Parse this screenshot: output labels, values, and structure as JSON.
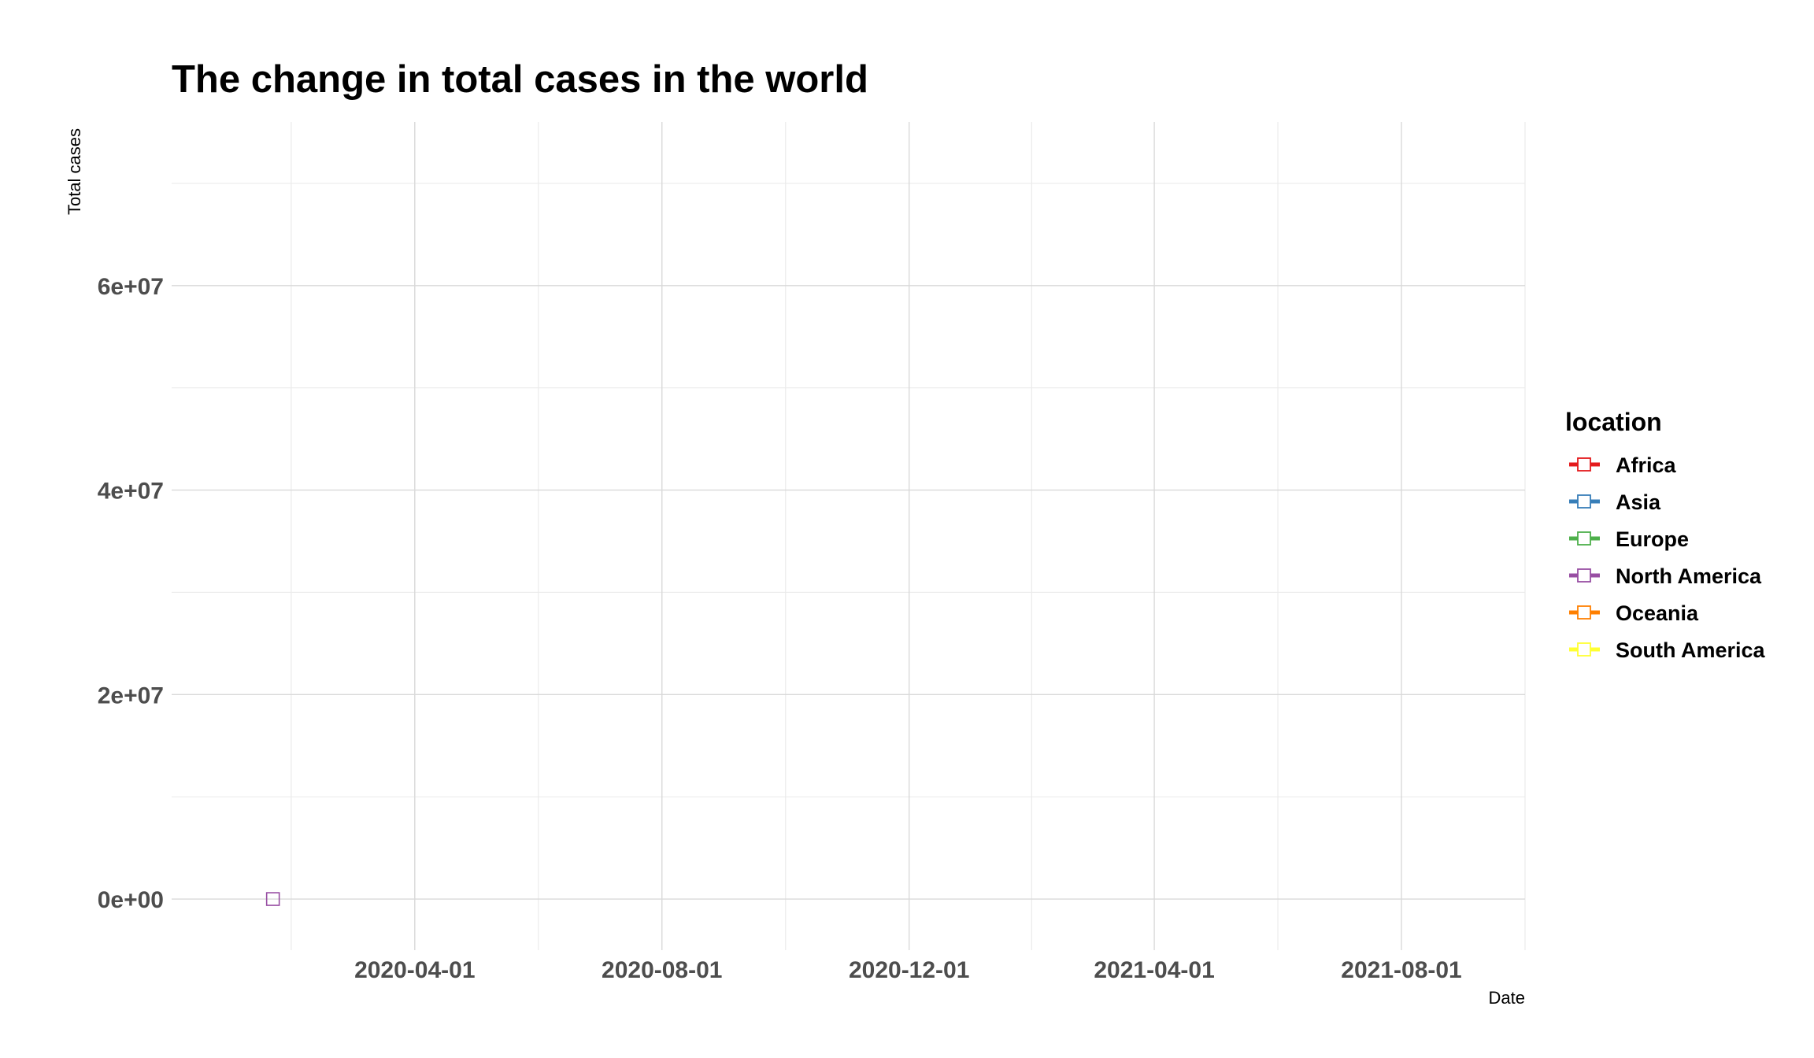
{
  "chart_data": {
    "type": "line",
    "title": "The change in total cases in the world",
    "xlabel": "Date",
    "ylabel": "Total cases",
    "x_axis": {
      "type": "date",
      "range": [
        "2019-12-03",
        "2021-10-01"
      ],
      "tick_labels": [
        "2020-04-01",
        "2020-08-01",
        "2020-12-01",
        "2021-04-01",
        "2021-08-01"
      ]
    },
    "y_axis": {
      "range": [
        -5000000,
        76000000
      ],
      "ticks": [
        0,
        20000000,
        40000000,
        60000000
      ],
      "tick_labels": [
        "0e+00",
        "2e+07",
        "4e+07",
        "6e+07"
      ]
    },
    "grid": true,
    "legend": {
      "title": "location",
      "position": "right"
    },
    "series": [
      {
        "name": "Africa",
        "color": "#e41a1c",
        "points": []
      },
      {
        "name": "Asia",
        "color": "#377eb8",
        "points": []
      },
      {
        "name": "Europe",
        "color": "#4daf4a",
        "points": []
      },
      {
        "name": "North America",
        "color": "#984ea3",
        "points": [
          {
            "x": "2020-01-22",
            "y": 1
          }
        ]
      },
      {
        "name": "Oceania",
        "color": "#ff7f00",
        "points": []
      },
      {
        "name": "South America",
        "color": "#ffff33",
        "points": []
      }
    ]
  }
}
